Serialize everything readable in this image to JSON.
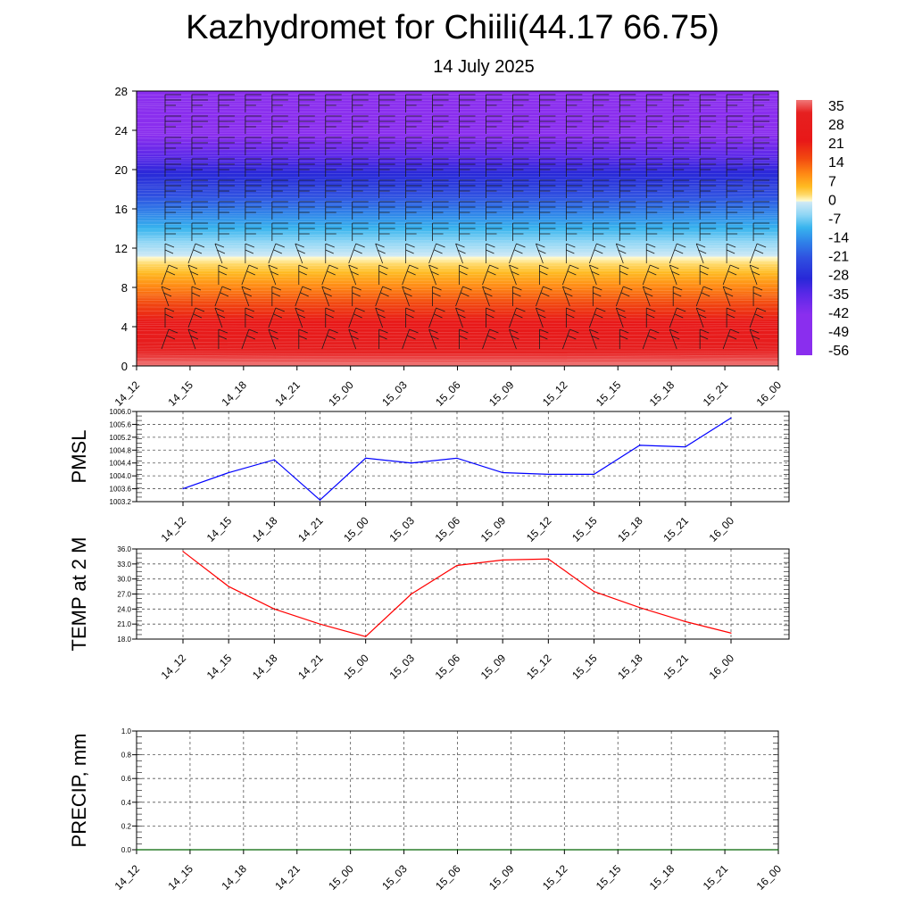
{
  "title": "Kazhydromet for Chiili(44.17 66.75)",
  "subtitle": "14 July 2025",
  "colors": {
    "pmsl_line": "#0000ff",
    "temp_line": "#ff0000",
    "precip_line": "#006400",
    "grid": "#555555"
  },
  "chart_data": [
    {
      "type": "heatmap",
      "name": "vertical-cross-section",
      "x_ticks": [
        "14_12",
        "14_15",
        "14_18",
        "14_21",
        "15_00",
        "15_03",
        "15_06",
        "15_09",
        "15_12",
        "15_15",
        "15_18",
        "15_21",
        "16_00"
      ],
      "ylim": [
        0,
        28
      ],
      "y_ticks": [
        0,
        4,
        8,
        12,
        16,
        20,
        24,
        28
      ],
      "colorbar_labels": [
        "35",
        "28",
        "21",
        "14",
        "7",
        "0",
        "-7",
        "-14",
        "-21",
        "-28",
        "-35",
        "-42",
        "-49",
        "-56"
      ],
      "colorscale": [
        [
          0.0,
          "#f07878"
        ],
        [
          0.05,
          "#e62020"
        ],
        [
          0.16,
          "#e81818"
        ],
        [
          0.23,
          "#f24a10"
        ],
        [
          0.29,
          "#ff8a14"
        ],
        [
          0.34,
          "#ffbb22"
        ],
        [
          0.37,
          "#ffd866"
        ],
        [
          0.395,
          "#fffacd"
        ],
        [
          0.4,
          "#cfe9f5"
        ],
        [
          0.45,
          "#8fd6f5"
        ],
        [
          0.5,
          "#38b4ee"
        ],
        [
          0.56,
          "#2f7fe8"
        ],
        [
          0.62,
          "#2f4fe0"
        ],
        [
          0.7,
          "#2828d8"
        ],
        [
          0.76,
          "#5a28e8"
        ],
        [
          0.84,
          "#8a2eee"
        ],
        [
          1.0,
          "#8a2eee"
        ]
      ]
    },
    {
      "type": "line",
      "name": "pmsl",
      "ylabel": "PMSL",
      "x": [
        "14_12",
        "14_15",
        "14_18",
        "14_21",
        "15_00",
        "15_03",
        "15_06",
        "15_09",
        "15_12",
        "15_15",
        "15_18",
        "15_21",
        "16_00"
      ],
      "values": [
        1003.6,
        1004.1,
        1004.5,
        1003.25,
        1004.55,
        1004.4,
        1004.55,
        1004.1,
        1004.05,
        1004.05,
        1004.95,
        1004.9,
        1005.8
      ],
      "ylim": [
        1003.2,
        1006.0
      ],
      "y_ticks": [
        "1003.2",
        "1003.6",
        "1004.0",
        "1004.4",
        "1004.8",
        "1005.2",
        "1005.6",
        "1006.0"
      ]
    },
    {
      "type": "line",
      "name": "temp-2m",
      "ylabel": "TEMP at 2 M",
      "x": [
        "14_12",
        "14_15",
        "14_18",
        "14_21",
        "15_00",
        "15_03",
        "15_06",
        "15_09",
        "15_12",
        "15_15",
        "15_18",
        "15_21",
        "16_00"
      ],
      "values": [
        35.5,
        28.5,
        24.0,
        21.0,
        18.5,
        27.0,
        32.7,
        33.8,
        34.0,
        27.5,
        24.3,
        21.5,
        19.2
      ],
      "ylim": [
        18.0,
        36.0
      ],
      "y_ticks": [
        "18.0",
        "21.0",
        "24.0",
        "27.0",
        "30.0",
        "33.0",
        "36.0"
      ]
    },
    {
      "type": "line",
      "name": "precip",
      "ylabel": "PRECIP, mm",
      "x": [
        "14_12",
        "14_15",
        "14_18",
        "14_21",
        "15_00",
        "15_03",
        "15_06",
        "15_09",
        "15_12",
        "15_15",
        "15_18",
        "15_21",
        "16_00"
      ],
      "values": [
        0,
        0,
        0,
        0,
        0,
        0,
        0,
        0,
        0,
        0,
        0,
        0,
        0
      ],
      "ylim": [
        0.0,
        1.0
      ],
      "y_ticks": [
        "0.0",
        "0.2",
        "0.4",
        "0.6",
        "0.8",
        "1.0"
      ]
    }
  ]
}
